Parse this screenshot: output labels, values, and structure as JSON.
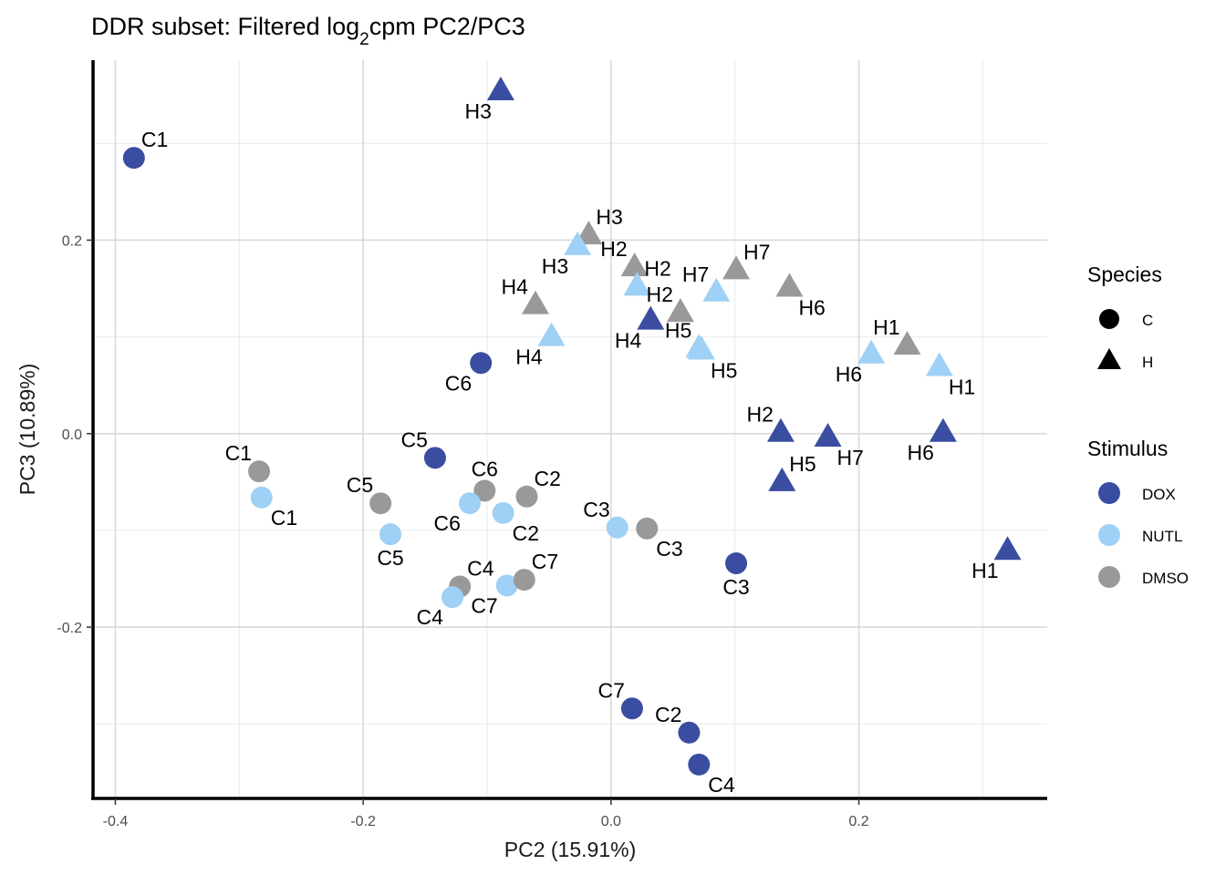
{
  "chart_data": {
    "type": "scatter",
    "title_main": "DDR subset: Filtered log",
    "title_sub": "2",
    "title_end": "cpm PC2/PC3",
    "xlabel": "PC2 (15.91%)",
    "ylabel": "PC3 (10.89%)",
    "xlim": [
      -0.418,
      0.352
    ],
    "ylim": [
      -0.377,
      0.386
    ],
    "x_ticks": [
      -0.4,
      -0.2,
      0.0,
      0.2
    ],
    "x_tick_labels": [
      "-0.4",
      "-0.2",
      "0.0",
      "0.2"
    ],
    "y_ticks": [
      -0.2,
      0.0,
      0.2
    ],
    "y_tick_labels": [
      "-0.2",
      "0.0",
      "0.2"
    ],
    "x_minor": [
      -0.3,
      -0.1,
      0.1,
      0.3
    ],
    "y_minor": [
      -0.3,
      -0.1,
      0.1,
      0.3
    ],
    "colors": {
      "DOX": "#3A4DA1",
      "NUTL": "#9FD0F5",
      "DMSO": "#999999"
    },
    "legend": {
      "species_title": "Species",
      "species": [
        {
          "label": "C",
          "shape": "circle"
        },
        {
          "label": "H",
          "shape": "triangle"
        }
      ],
      "stimulus_title": "Stimulus",
      "stimulus": [
        "DOX",
        "NUTL",
        "DMSO"
      ]
    },
    "points": [
      {
        "label": "C1",
        "species": "C",
        "stimulus": "DOX",
        "x": -0.385,
        "y": 0.285,
        "lpos": "ur"
      },
      {
        "label": "C6",
        "species": "C",
        "stimulus": "DOX",
        "x": -0.105,
        "y": 0.073,
        "lpos": "ll"
      },
      {
        "label": "C5",
        "species": "C",
        "stimulus": "DOX",
        "x": -0.142,
        "y": -0.025,
        "lpos": "ul"
      },
      {
        "label": "C3",
        "species": "C",
        "stimulus": "DOX",
        "x": 0.101,
        "y": -0.134,
        "lpos": "lc"
      },
      {
        "label": "C7",
        "species": "C",
        "stimulus": "DOX",
        "x": 0.017,
        "y": -0.284,
        "lpos": "ul"
      },
      {
        "label": "C2",
        "species": "C",
        "stimulus": "DOX",
        "x": 0.063,
        "y": -0.309,
        "lpos": "ul"
      },
      {
        "label": "C4",
        "species": "C",
        "stimulus": "DOX",
        "x": 0.071,
        "y": -0.342,
        "lpos": "lr"
      },
      {
        "label": "C1",
        "species": "C",
        "stimulus": "DMSO",
        "x": -0.284,
        "y": -0.039,
        "lpos": "ul"
      },
      {
        "label": "C1",
        "species": "C",
        "stimulus": "NUTL",
        "x": -0.282,
        "y": -0.066,
        "lpos": "lr"
      },
      {
        "label": "C5",
        "species": "C",
        "stimulus": "DMSO",
        "x": -0.186,
        "y": -0.072,
        "lpos": "ul"
      },
      {
        "label": "C5",
        "species": "C",
        "stimulus": "NUTL",
        "x": -0.178,
        "y": -0.104,
        "lpos": "lc"
      },
      {
        "label": "C6",
        "species": "C",
        "stimulus": "DMSO",
        "x": -0.102,
        "y": -0.059,
        "lpos": "uc"
      },
      {
        "label": "C6",
        "species": "C",
        "stimulus": "NUTL",
        "x": -0.114,
        "y": -0.072,
        "lpos": "ll"
      },
      {
        "label": "C2",
        "species": "C",
        "stimulus": "DMSO",
        "x": -0.068,
        "y": -0.065,
        "lpos": "ur"
      },
      {
        "label": "C2",
        "species": "C",
        "stimulus": "NUTL",
        "x": -0.087,
        "y": -0.082,
        "lpos": "lr"
      },
      {
        "label": "C3",
        "species": "C",
        "stimulus": "NUTL",
        "x": 0.005,
        "y": -0.097,
        "lpos": "ul"
      },
      {
        "label": "C3",
        "species": "C",
        "stimulus": "DMSO",
        "x": 0.029,
        "y": -0.098,
        "lpos": "lr"
      },
      {
        "label": "C4",
        "species": "C",
        "stimulus": "DMSO",
        "x": -0.122,
        "y": -0.158,
        "lpos": "ur"
      },
      {
        "label": "C4",
        "species": "C",
        "stimulus": "NUTL",
        "x": -0.128,
        "y": -0.169,
        "lpos": "ll"
      },
      {
        "label": "C7",
        "species": "C",
        "stimulus": "NUTL",
        "x": -0.084,
        "y": -0.157,
        "lpos": "ll"
      },
      {
        "label": "C7",
        "species": "C",
        "stimulus": "DMSO",
        "x": -0.07,
        "y": -0.151,
        "lpos": "ur"
      },
      {
        "label": "H3",
        "species": "H",
        "stimulus": "DOX",
        "x": -0.089,
        "y": 0.354,
        "lpos": "ll"
      },
      {
        "label": "H3",
        "species": "H",
        "stimulus": "DMSO",
        "x": -0.018,
        "y": 0.205,
        "lpos": "ur"
      },
      {
        "label": "H3",
        "species": "H",
        "stimulus": "NUTL",
        "x": -0.027,
        "y": 0.194,
        "lpos": "ll"
      },
      {
        "label": "H2",
        "species": "H",
        "stimulus": "DMSO",
        "x": 0.019,
        "y": 0.172,
        "lpos": "ul"
      },
      {
        "label": "H2",
        "species": "H",
        "stimulus": "NUTL",
        "x": 0.021,
        "y": 0.152,
        "lpos": "ur"
      },
      {
        "label": "H4",
        "species": "H",
        "stimulus": "DMSO",
        "x": -0.061,
        "y": 0.133,
        "lpos": "ul"
      },
      {
        "label": "H4",
        "species": "H",
        "stimulus": "NUTL",
        "x": -0.048,
        "y": 0.1,
        "lpos": "ll"
      },
      {
        "label": "H4",
        "species": "H",
        "stimulus": "DOX",
        "x": 0.032,
        "y": 0.117,
        "lpos": "ll"
      },
      {
        "label": "H2",
        "species": "H",
        "stimulus": "DMSO",
        "x": 0.056,
        "y": 0.125,
        "lpos": "ul"
      },
      {
        "label": "H5",
        "species": "H",
        "stimulus": "NUTL",
        "x": 0.071,
        "y": 0.088,
        "lpos": "ul"
      },
      {
        "label": "H7",
        "species": "H",
        "stimulus": "NUTL",
        "x": 0.085,
        "y": 0.146,
        "lpos": "ul"
      },
      {
        "label": "H7",
        "species": "H",
        "stimulus": "DMSO",
        "x": 0.101,
        "y": 0.169,
        "lpos": "ur"
      },
      {
        "label": "H6",
        "species": "H",
        "stimulus": "DMSO",
        "x": 0.144,
        "y": 0.151,
        "lpos": "lr"
      },
      {
        "label": "H5",
        "species": "H",
        "stimulus": "NUTL",
        "x": 0.073,
        "y": 0.086,
        "lpos": "lr"
      },
      {
        "label": "H1",
        "species": "H",
        "stimulus": "DMSO",
        "x": 0.239,
        "y": 0.091,
        "lpos": "ul"
      },
      {
        "label": "H6",
        "species": "H",
        "stimulus": "NUTL",
        "x": 0.21,
        "y": 0.082,
        "lpos": "ll"
      },
      {
        "label": "H1",
        "species": "H",
        "stimulus": "NUTL",
        "x": 0.265,
        "y": 0.069,
        "lpos": "lr"
      },
      {
        "label": "H2",
        "species": "H",
        "stimulus": "DOX",
        "x": 0.137,
        "y": 0.001,
        "lpos": "ul"
      },
      {
        "label": "H5",
        "species": "H",
        "stimulus": "DOX",
        "x": 0.138,
        "y": -0.05,
        "lpos": "ur"
      },
      {
        "label": "H7",
        "species": "H",
        "stimulus": "DOX",
        "x": 0.175,
        "y": -0.004,
        "lpos": "lr"
      },
      {
        "label": "H6",
        "species": "H",
        "stimulus": "DOX",
        "x": 0.268,
        "y": 0.001,
        "lpos": "ll"
      },
      {
        "label": "H1",
        "species": "H",
        "stimulus": "DOX",
        "x": 0.32,
        "y": -0.121,
        "lpos": "ll"
      }
    ]
  }
}
